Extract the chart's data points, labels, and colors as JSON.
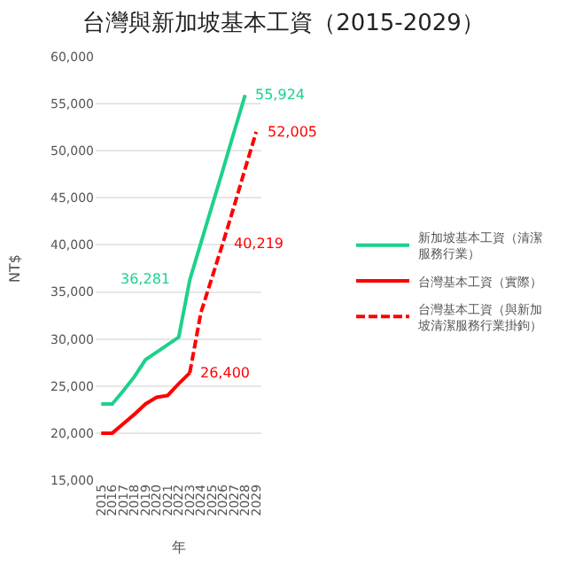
{
  "chart_data": {
    "type": "line",
    "title": "台灣與新加坡基本工資（2015-2029）",
    "xlabel": "年",
    "ylabel": "NT$",
    "categories": [
      "2015",
      "2016",
      "2017",
      "2018",
      "2019",
      "2020",
      "2021",
      "2022",
      "2023",
      "2024",
      "2025",
      "2026",
      "2027",
      "2028",
      "2029"
    ],
    "series": [
      {
        "name": "新加坡基本工資（清潔服務行業）",
        "color": "#1dd18a",
        "line_style": "solid",
        "values": [
          23100,
          23100,
          24500,
          26000,
          27800,
          28600,
          29400,
          30200,
          36281,
          40200,
          44100,
          48000,
          52000,
          55924,
          null
        ],
        "value_labels": [
          null,
          null,
          null,
          null,
          null,
          null,
          null,
          null,
          "36,281",
          null,
          null,
          null,
          null,
          "55,924",
          null
        ]
      },
      {
        "name": "台灣基本工資（實際）",
        "color": "#ff0000",
        "line_style": "solid",
        "values": [
          20000,
          20000,
          21000,
          22000,
          23100,
          23800,
          24000,
          25250,
          26400,
          null,
          null,
          null,
          null,
          null,
          null
        ],
        "value_labels": [
          null,
          null,
          null,
          null,
          null,
          null,
          null,
          null,
          "26,400",
          null,
          null,
          null,
          null,
          null,
          null
        ]
      },
      {
        "name": "台灣基本工資（與新加坡清潔服務行業掛鉤）",
        "color": "#ff0000",
        "line_style": "dashed",
        "values": [
          null,
          null,
          null,
          null,
          null,
          null,
          null,
          null,
          26400,
          32800,
          36500,
          40219,
          44100,
          48100,
          52005
        ],
        "value_labels": [
          null,
          null,
          null,
          null,
          null,
          null,
          null,
          null,
          null,
          null,
          null,
          "40,219",
          null,
          null,
          "52,005"
        ]
      }
    ],
    "ylim": [
      15000,
      60000
    ],
    "yticks": [
      {
        "value": 15000,
        "label": "15,000"
      },
      {
        "value": 20000,
        "label": "20,000"
      },
      {
        "value": 25000,
        "label": "25,000"
      },
      {
        "value": 30000,
        "label": "30,000"
      },
      {
        "value": 35000,
        "label": "35,000"
      },
      {
        "value": 40000,
        "label": "40,000"
      },
      {
        "value": 45000,
        "label": "45,000"
      },
      {
        "value": 50000,
        "label": "50,000"
      },
      {
        "value": 55000,
        "label": "55,000"
      },
      {
        "value": 60000,
        "label": "60,000"
      }
    ],
    "grid": "y",
    "legend": "right",
    "marker": "none"
  }
}
